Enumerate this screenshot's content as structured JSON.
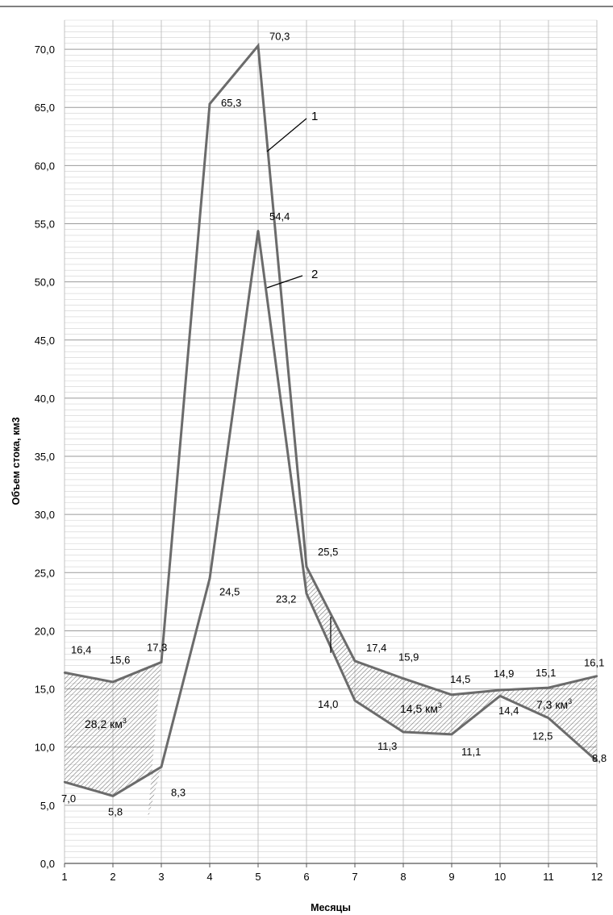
{
  "chart_data": {
    "type": "line",
    "xlabel": "Месяцы",
    "ylabel": "Объем стока, км3",
    "x": [
      1,
      2,
      3,
      4,
      5,
      6,
      7,
      8,
      9,
      10,
      11,
      12
    ],
    "x_tick_labels": [
      "1",
      "2",
      "3",
      "4",
      "5",
      "6",
      "7",
      "8",
      "9",
      "10",
      "11",
      "12"
    ],
    "ylim": [
      0,
      72.5
    ],
    "y_ticks": [
      0,
      5,
      10,
      15,
      20,
      25,
      30,
      35,
      40,
      45,
      50,
      55,
      60,
      65,
      70
    ],
    "y_tick_labels": [
      "0,0",
      "5,0",
      "10,0",
      "15,0",
      "20,0",
      "25,0",
      "30,0",
      "35,0",
      "40,0",
      "45,0",
      "50,0",
      "55,0",
      "60,0",
      "65,0",
      "70,0"
    ],
    "grid": true,
    "series": [
      {
        "name": "1",
        "values": [
          16.4,
          15.6,
          17.3,
          65.3,
          70.3,
          25.5,
          17.4,
          15.9,
          14.5,
          14.9,
          15.1,
          16.1
        ],
        "labels": [
          "16,4",
          "15,6",
          "17,3",
          "65,3",
          "70,3",
          "25,5",
          "17,4",
          "15,9",
          "14,5",
          "14,9",
          "15,1",
          "16,1"
        ],
        "color": "#6b6b6b"
      },
      {
        "name": "2",
        "values": [
          7.0,
          5.8,
          8.3,
          24.5,
          54.4,
          23.2,
          14.0,
          11.3,
          11.1,
          14.4,
          12.5,
          8.8
        ],
        "labels": [
          "7,0",
          "5,8",
          "8,3",
          "24,5",
          "54,4",
          "23,2",
          "14,0",
          "11,3",
          "11,1",
          "14,4",
          "12,5",
          "8,8"
        ],
        "color": "#6b6b6b"
      }
    ],
    "annotations": [
      {
        "text": "28,2 км",
        "sup": "3"
      },
      {
        "text": "14,5 км",
        "sup": "3"
      },
      {
        "text": "7,3 км",
        "sup": "3"
      }
    ]
  }
}
